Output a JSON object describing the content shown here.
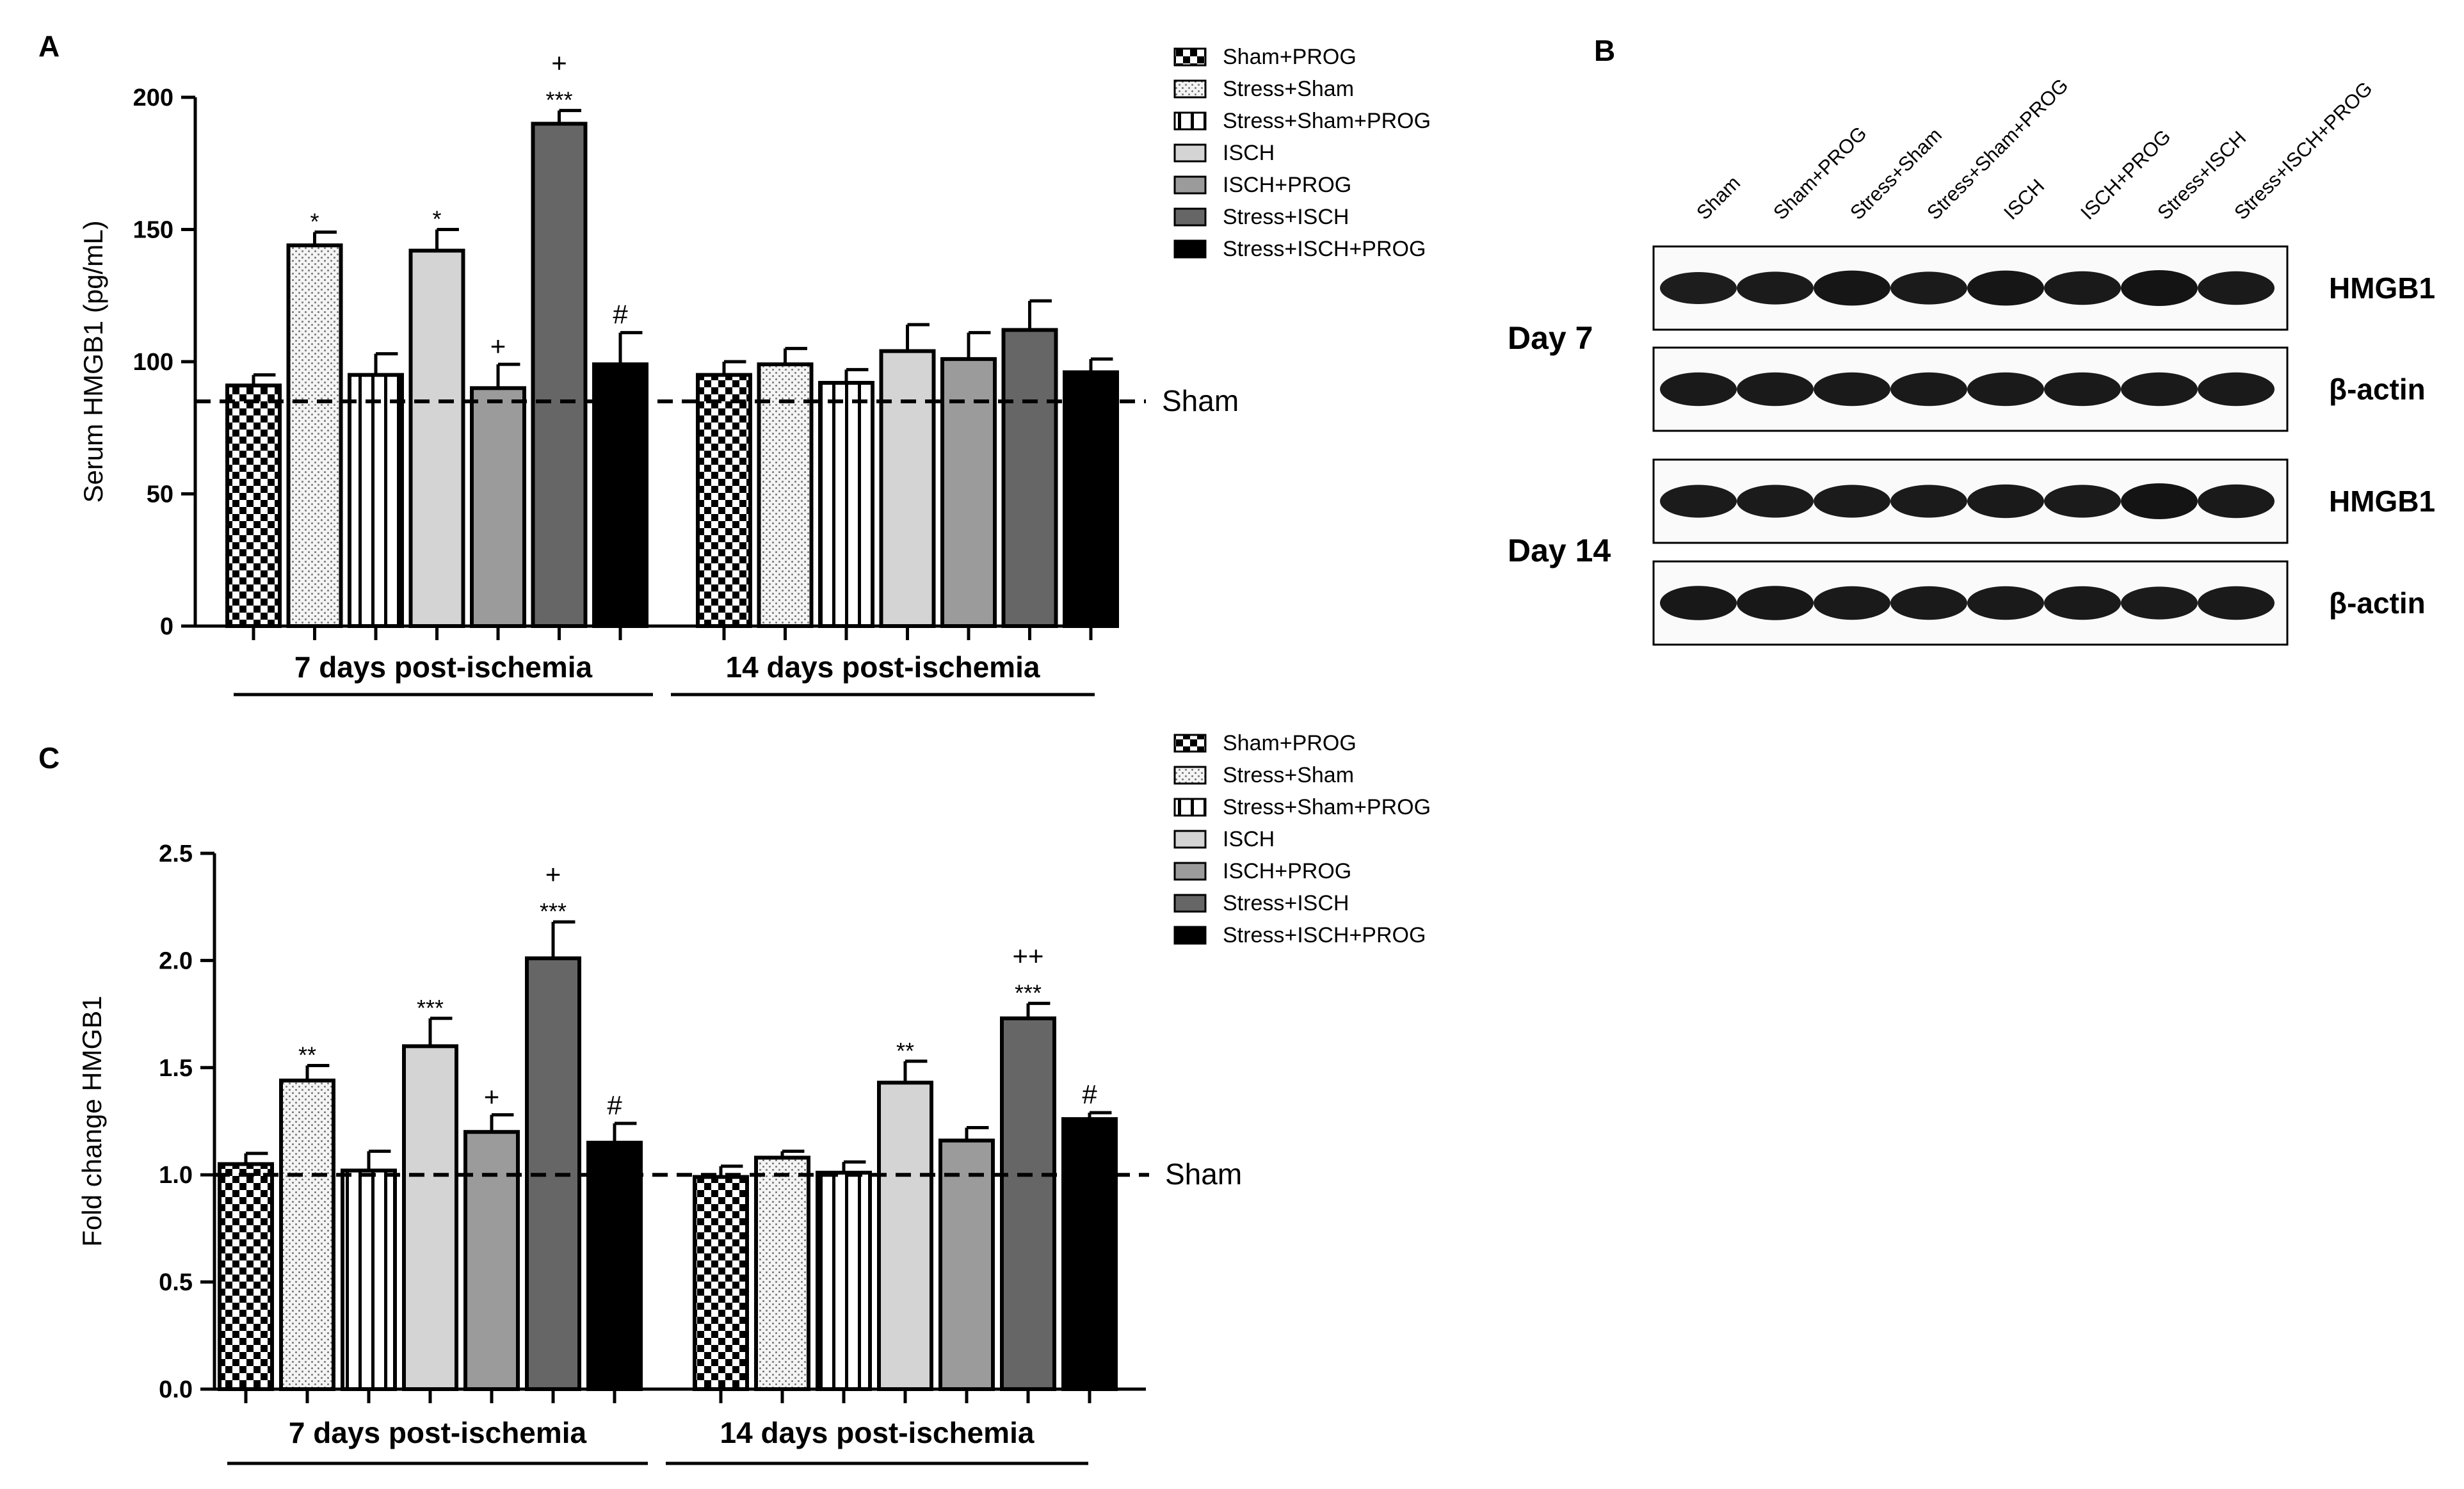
{
  "figure": {
    "panel_a_label": "A",
    "panel_b_label": "B",
    "panel_c_label": "C"
  },
  "colors": {
    "Sham+PROG": "#ffffff",
    "Stress+Sham": "#f4f4f4",
    "Stress+Sham+PROG": "#ffffff",
    "ISCH": "#d4d4d4",
    "ISCH+PROG": "#9b9b9b",
    "Stress+ISCH": "#666666",
    "Stress+ISCH+PROG": "#000000"
  },
  "legend": {
    "entries": [
      {
        "label": "Sham+PROG",
        "pattern": "checker"
      },
      {
        "label": "Stress+Sham",
        "pattern": "dots"
      },
      {
        "label": "Stress+Sham+PROG",
        "pattern": "vstripes"
      },
      {
        "label": "ISCH",
        "pattern": "light"
      },
      {
        "label": "ISCH+PROG",
        "pattern": "mid"
      },
      {
        "label": "Stress+ISCH",
        "pattern": "dark"
      },
      {
        "label": "Stress+ISCH+PROG",
        "pattern": "black"
      }
    ]
  },
  "western_blot": {
    "lanes": [
      "Sham",
      "Sham+PROG",
      "Stress+Sham",
      "Stress+Sham+PROG",
      "ISCH",
      "ISCH+PROG",
      "Stress+ISCH",
      "Stress+ISCH+PROG"
    ],
    "groups": [
      {
        "day": "Day 7",
        "rows": [
          {
            "label": "HMGB1",
            "intensity": [
              0.75,
              0.8,
              0.95,
              0.8,
              0.95,
              0.85,
              1.0,
              0.85
            ]
          },
          {
            "label": "β-actin",
            "intensity": [
              0.85,
              0.85,
              0.85,
              0.85,
              0.85,
              0.85,
              0.85,
              0.85
            ]
          }
        ]
      },
      {
        "day": "Day 14",
        "rows": [
          {
            "label": "HMGB1",
            "intensity": [
              0.8,
              0.8,
              0.8,
              0.8,
              0.85,
              0.8,
              1.0,
              0.85
            ]
          },
          {
            "label": "β-actin",
            "intensity": [
              0.9,
              0.9,
              0.85,
              0.85,
              0.85,
              0.85,
              0.8,
              0.85
            ]
          }
        ]
      }
    ]
  },
  "chart_data": [
    {
      "panel": "A",
      "type": "bar",
      "title": "",
      "ylabel": "Serum HMGB1 (pg/mL)",
      "xlabel": "",
      "ylim": [
        0,
        200
      ],
      "yticks": [
        0,
        50,
        100,
        150,
        200
      ],
      "yticklabels": [
        "0",
        "50",
        "100",
        "150",
        "200"
      ],
      "categories": [
        "7 days post-ischemia",
        "14 days post-ischemia"
      ],
      "reference_line": {
        "label": "Sham",
        "value": 85
      },
      "series": [
        {
          "name": "Sham+PROG",
          "values": [
            91,
            95
          ],
          "errors": [
            4,
            5
          ],
          "annotations": [
            "",
            ""
          ]
        },
        {
          "name": "Stress+Sham",
          "values": [
            144,
            99
          ],
          "errors": [
            5,
            6
          ],
          "annotations": [
            "*",
            ""
          ]
        },
        {
          "name": "Stress+Sham+PROG",
          "values": [
            95,
            92
          ],
          "errors": [
            8,
            5
          ],
          "annotations": [
            "",
            ""
          ]
        },
        {
          "name": "ISCH",
          "values": [
            142,
            104
          ],
          "errors": [
            8,
            10
          ],
          "annotations": [
            "*",
            ""
          ]
        },
        {
          "name": "ISCH+PROG",
          "values": [
            90,
            101
          ],
          "errors": [
            9,
            10
          ],
          "annotations": [
            "+",
            ""
          ]
        },
        {
          "name": "Stress+ISCH",
          "values": [
            190,
            112
          ],
          "errors": [
            5,
            11
          ],
          "annotations": [
            "+\n***",
            ""
          ]
        },
        {
          "name": "Stress+ISCH+PROG",
          "values": [
            99,
            96
          ],
          "errors": [
            12,
            5
          ],
          "annotations": [
            "#",
            ""
          ]
        }
      ]
    },
    {
      "panel": "C",
      "type": "bar",
      "title": "",
      "ylabel": "Fold change HMGB1",
      "xlabel": "",
      "ylim": [
        0,
        2.5
      ],
      "yticks": [
        0,
        0.5,
        1,
        1.5,
        2,
        2.5
      ],
      "yticklabels": [
        "0.0",
        "0.5",
        "1.0",
        "1.5",
        "2.0",
        "2.5"
      ],
      "categories": [
        "7 days post-ischemia",
        "14 days post-ischemia"
      ],
      "reference_line": {
        "label": "Sham",
        "value": 1.0
      },
      "series": [
        {
          "name": "Sham+PROG",
          "values": [
            1.05,
            0.99
          ],
          "errors": [
            0.05,
            0.05
          ],
          "annotations": [
            "",
            ""
          ]
        },
        {
          "name": "Stress+Sham",
          "values": [
            1.44,
            1.08
          ],
          "errors": [
            0.07,
            0.03
          ],
          "annotations": [
            "**",
            ""
          ]
        },
        {
          "name": "Stress+Sham+PROG",
          "values": [
            1.02,
            1.01
          ],
          "errors": [
            0.09,
            0.05
          ],
          "annotations": [
            "",
            ""
          ]
        },
        {
          "name": "ISCH",
          "values": [
            1.6,
            1.43
          ],
          "errors": [
            0.13,
            0.1
          ],
          "annotations": [
            "***",
            "**"
          ]
        },
        {
          "name": "ISCH+PROG",
          "values": [
            1.2,
            1.16
          ],
          "errors": [
            0.08,
            0.06
          ],
          "annotations": [
            "+",
            ""
          ]
        },
        {
          "name": "Stress+ISCH",
          "values": [
            2.01,
            1.73
          ],
          "errors": [
            0.17,
            0.07
          ],
          "annotations": [
            "+\n***",
            "++\n***"
          ]
        },
        {
          "name": "Stress+ISCH+PROG",
          "values": [
            1.15,
            1.26
          ],
          "errors": [
            0.09,
            0.03
          ],
          "annotations": [
            "#",
            "#"
          ]
        }
      ]
    }
  ]
}
